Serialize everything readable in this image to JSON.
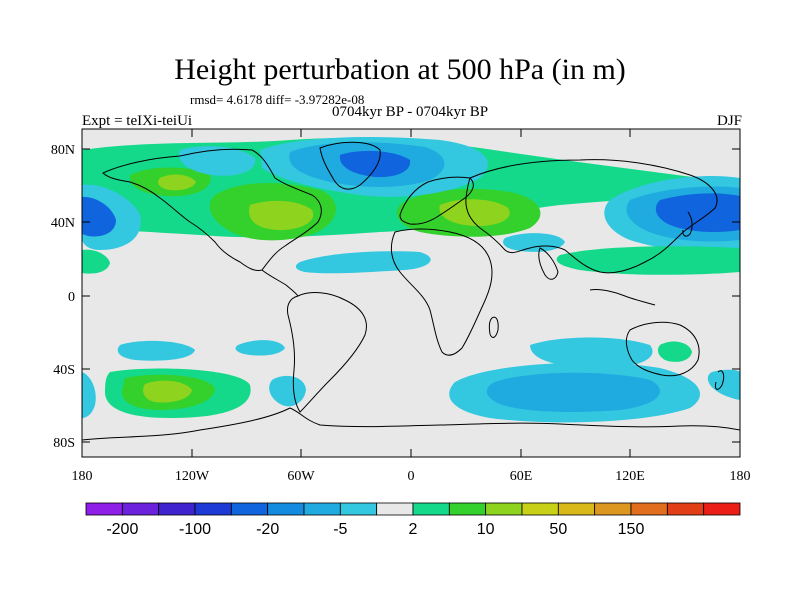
{
  "title": "Height perturbation at 500 hPa (in m)",
  "stats": "rmsd= 4.6178 diff= -3.97282e-08",
  "left_label": "Expt = teIXi-teiUi",
  "center_label": "0704kyr BP - 0704kyr BP",
  "right_label": "DJF",
  "lat_ticks": [
    "80N",
    "40N",
    "0",
    "40S",
    "80S"
  ],
  "lon_ticks": [
    "180",
    "120W",
    "60W",
    "0",
    "60E",
    "120E",
    "180"
  ],
  "colorbar": {
    "colors": [
      "#8e1ee8",
      "#6c22dc",
      "#3f23cf",
      "#1d3ad7",
      "#1064dd",
      "#138cdf",
      "#20abe0",
      "#33c8e0",
      "#e8e8e8",
      "#15d98a",
      "#34d02c",
      "#8ed31e",
      "#c9d018",
      "#d9b91a",
      "#dc9720",
      "#e16e1c",
      "#e13e16",
      "#eb1d15"
    ],
    "labels": [
      "-200",
      "-100",
      "-20",
      "-5",
      "2",
      "10",
      "50",
      "150"
    ]
  },
  "field_colors": {
    "background": "#e8e8e8",
    "cyan": "#33c8e0",
    "lightblue": "#20abe0",
    "blue": "#1064dd",
    "darkblue": "#1d3ad7",
    "green": "#15d98a",
    "green2": "#34d02c",
    "yellowgreen": "#8ed31e"
  }
}
